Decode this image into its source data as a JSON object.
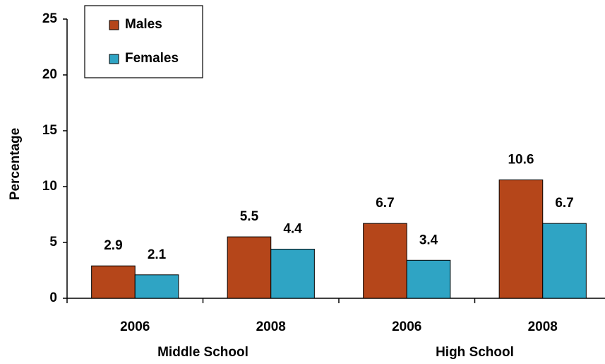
{
  "chart_data": {
    "type": "bar",
    "y_label": "Percentage",
    "categories": [
      "2006",
      "2008",
      "2006",
      "2008"
    ],
    "groups": [
      "Middle School",
      "High School"
    ],
    "series": [
      {
        "name": "Males",
        "color": "#b5461a",
        "values": [
          2.9,
          5.5,
          6.7,
          10.6
        ]
      },
      {
        "name": "Females",
        "color": "#2fa4c4",
        "values": [
          2.1,
          4.4,
          3.4,
          6.7
        ]
      }
    ],
    "ylim": [
      0,
      25
    ],
    "yticks": [
      0,
      5,
      10,
      15,
      20,
      25
    ],
    "grid": false,
    "legend": "upper-left"
  }
}
